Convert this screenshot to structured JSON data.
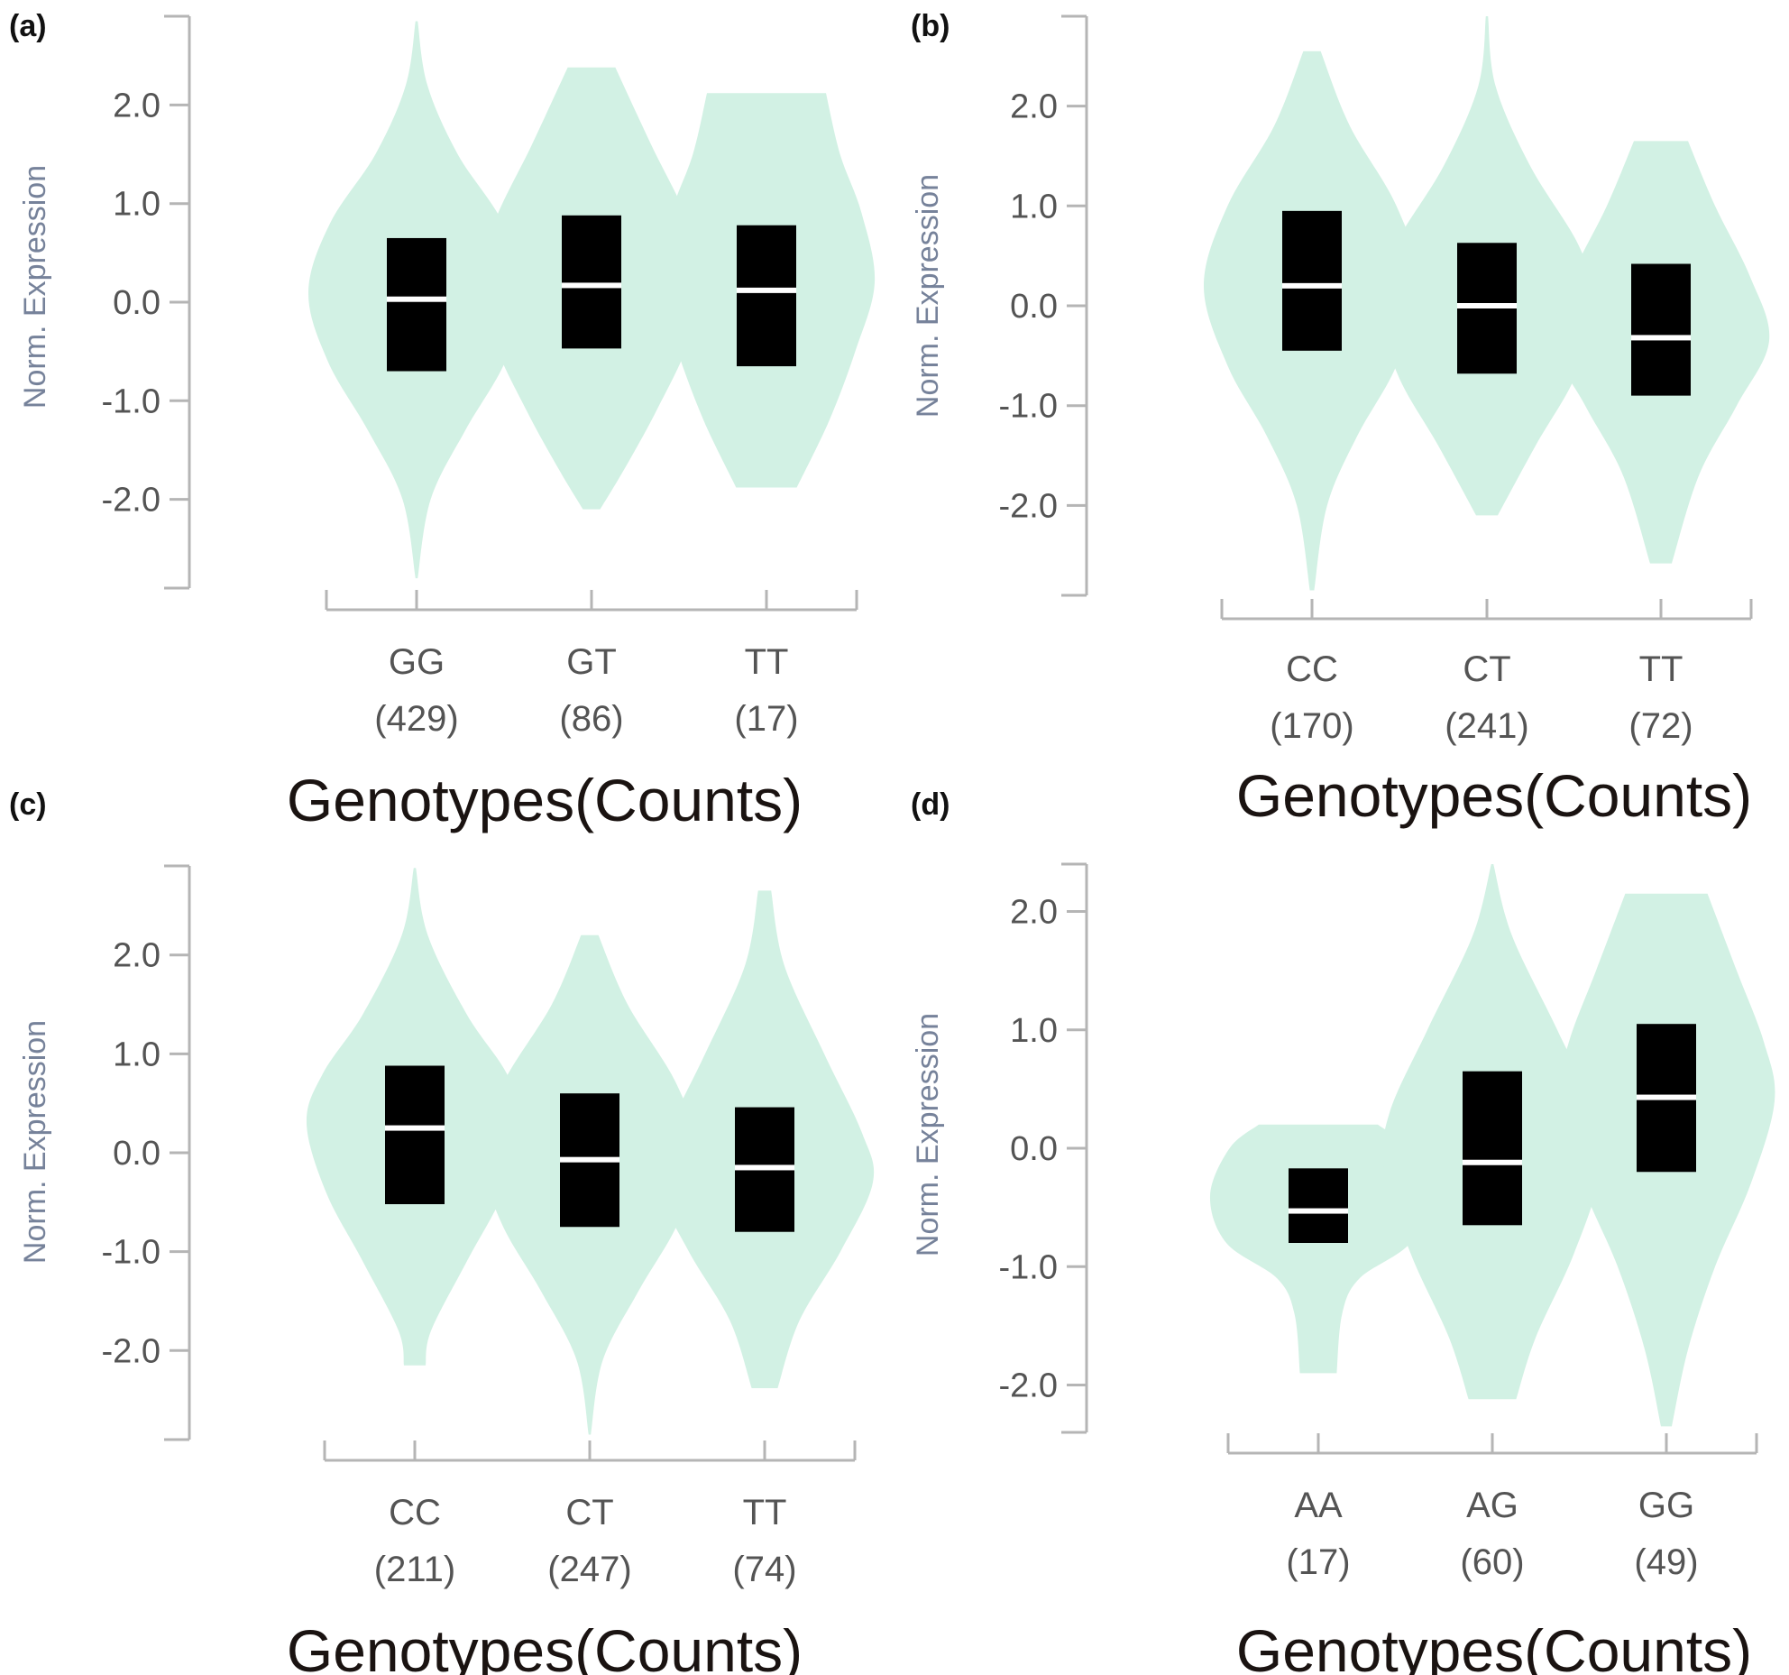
{
  "figure": {
    "colors": {
      "violin": "#d2f1e4",
      "box": "#000000",
      "median": "#ffffff",
      "axis": "#b5b5b5",
      "ylabel": "#76829a",
      "ticks": "#545454",
      "xtitle": "#1a1311"
    }
  },
  "chart_data": [
    {
      "panel": "(a)",
      "type": "violin",
      "ylabel": "Norm. Expression",
      "xlabel": "Genotypes(Counts)",
      "ylim": [
        -2.9,
        2.9
      ],
      "yticks": [
        2.0,
        1.0,
        0.0,
        -1.0,
        -2.0
      ],
      "ytick_labels": [
        "2.0",
        "1.0",
        "0.0",
        "-1.0",
        "-2.0"
      ],
      "groups": [
        {
          "genotype": "GG",
          "count": "(429)",
          "median": 0.03,
          "q1": -0.7,
          "q3": 0.65,
          "min": -2.8,
          "max": 2.85,
          "profile": [
            [
              2.85,
              0.01
            ],
            [
              2.2,
              0.1
            ],
            [
              1.5,
              0.38
            ],
            [
              0.8,
              0.8
            ],
            [
              0.1,
              1.0
            ],
            [
              -0.6,
              0.82
            ],
            [
              -1.3,
              0.45
            ],
            [
              -2.0,
              0.13
            ],
            [
              -2.8,
              0.01
            ]
          ]
        },
        {
          "genotype": "GT",
          "count": "(86)",
          "median": 0.17,
          "q1": -0.47,
          "q3": 0.88,
          "min": -2.1,
          "max": 2.38,
          "profile": [
            [
              2.38,
              0.22
            ],
            [
              1.6,
              0.55
            ],
            [
              0.8,
              0.9
            ],
            [
              0.2,
              1.0
            ],
            [
              -0.4,
              0.9
            ],
            [
              -1.1,
              0.6
            ],
            [
              -1.7,
              0.3
            ],
            [
              -2.1,
              0.08
            ]
          ]
        },
        {
          "genotype": "TT",
          "count": "(17)",
          "median": 0.12,
          "q1": -0.65,
          "q3": 0.78,
          "min": -1.88,
          "max": 2.12,
          "profile": [
            [
              2.12,
              0.55
            ],
            [
              1.5,
              0.68
            ],
            [
              0.9,
              0.88
            ],
            [
              0.2,
              1.0
            ],
            [
              -0.5,
              0.82
            ],
            [
              -1.2,
              0.58
            ],
            [
              -1.88,
              0.28
            ]
          ]
        }
      ]
    },
    {
      "panel": "(b)",
      "type": "violin",
      "ylabel": "Norm. Expression",
      "xlabel": "Genotypes(Counts)",
      "ylim": [
        -2.9,
        2.9
      ],
      "yticks": [
        2.0,
        1.0,
        0.0,
        -1.0,
        -2.0
      ],
      "ytick_labels": [
        "2.0",
        "1.0",
        "0.0",
        "-1.0",
        "-2.0"
      ],
      "groups": [
        {
          "genotype": "CC",
          "count": "(170)",
          "median": 0.2,
          "q1": -0.45,
          "q3": 0.95,
          "min": -2.85,
          "max": 2.55,
          "profile": [
            [
              2.55,
              0.08
            ],
            [
              1.8,
              0.35
            ],
            [
              1.0,
              0.78
            ],
            [
              0.2,
              1.0
            ],
            [
              -0.6,
              0.78
            ],
            [
              -1.3,
              0.42
            ],
            [
              -2.0,
              0.14
            ],
            [
              -2.85,
              0.02
            ]
          ]
        },
        {
          "genotype": "CT",
          "count": "(241)",
          "median": 0.0,
          "q1": -0.68,
          "q3": 0.63,
          "min": -2.1,
          "max": 2.9,
          "profile": [
            [
              2.9,
              0.01
            ],
            [
              2.2,
              0.08
            ],
            [
              1.4,
              0.4
            ],
            [
              0.6,
              0.85
            ],
            [
              0.0,
              1.0
            ],
            [
              -0.7,
              0.82
            ],
            [
              -1.4,
              0.45
            ],
            [
              -2.1,
              0.1
            ]
          ]
        },
        {
          "genotype": "TT",
          "count": "(72)",
          "median": -0.32,
          "q1": -0.9,
          "q3": 0.42,
          "min": -2.58,
          "max": 1.65,
          "profile": [
            [
              1.65,
              0.25
            ],
            [
              1.0,
              0.5
            ],
            [
              0.3,
              0.82
            ],
            [
              -0.35,
              1.0
            ],
            [
              -1.0,
              0.7
            ],
            [
              -1.7,
              0.35
            ],
            [
              -2.58,
              0.1
            ]
          ]
        }
      ]
    },
    {
      "panel": "(c)",
      "type": "violin",
      "ylabel": "Norm. Expression",
      "xlabel": "Genotypes(Counts)",
      "ylim": [
        -2.9,
        2.9
      ],
      "yticks": [
        2.0,
        1.0,
        0.0,
        -1.0,
        -2.0
      ],
      "ytick_labels": [
        "2.0",
        "1.0",
        "0.0",
        "-1.0",
        "-2.0"
      ],
      "groups": [
        {
          "genotype": "CC",
          "count": "(211)",
          "median": 0.25,
          "q1": -0.52,
          "q3": 0.88,
          "min": -2.15,
          "max": 2.88,
          "profile": [
            [
              2.88,
              0.01
            ],
            [
              2.2,
              0.12
            ],
            [
              1.4,
              0.48
            ],
            [
              0.8,
              0.85
            ],
            [
              0.3,
              1.0
            ],
            [
              -0.4,
              0.82
            ],
            [
              -1.1,
              0.48
            ],
            [
              -1.8,
              0.15
            ],
            [
              -2.15,
              0.1
            ]
          ]
        },
        {
          "genotype": "CT",
          "count": "(247)",
          "median": -0.07,
          "q1": -0.75,
          "q3": 0.6,
          "min": -2.85,
          "max": 2.2,
          "profile": [
            [
              2.2,
              0.08
            ],
            [
              1.5,
              0.35
            ],
            [
              0.7,
              0.8
            ],
            [
              0.0,
              1.0
            ],
            [
              -0.7,
              0.82
            ],
            [
              -1.4,
              0.45
            ],
            [
              -2.1,
              0.12
            ],
            [
              -2.85,
              0.01
            ]
          ]
        },
        {
          "genotype": "TT",
          "count": "(74)",
          "median": -0.15,
          "q1": -0.8,
          "q3": 0.46,
          "min": -2.38,
          "max": 2.65,
          "profile": [
            [
              2.65,
              0.06
            ],
            [
              1.9,
              0.18
            ],
            [
              1.0,
              0.55
            ],
            [
              0.2,
              0.9
            ],
            [
              -0.3,
              1.0
            ],
            [
              -1.0,
              0.7
            ],
            [
              -1.7,
              0.32
            ],
            [
              -2.38,
              0.12
            ]
          ]
        }
      ]
    },
    {
      "panel": "(d)",
      "type": "violin",
      "ylabel": "Norm. Expression",
      "xlabel": "Genotypes(Counts)",
      "ylim": [
        -2.4,
        2.4
      ],
      "yticks": [
        2.0,
        1.0,
        0.0,
        -1.0,
        -2.0
      ],
      "ytick_labels": [
        "2.0",
        "1.0",
        "0.0",
        "-1.0",
        "-2.0"
      ],
      "groups": [
        {
          "genotype": "AA",
          "count": "(17)",
          "median": -0.53,
          "q1": -0.8,
          "q3": -0.17,
          "min": -1.9,
          "max": 0.2,
          "profile": [
            [
              0.2,
              0.55
            ],
            [
              0.0,
              0.82
            ],
            [
              -0.4,
              1.0
            ],
            [
              -0.8,
              0.85
            ],
            [
              -1.1,
              0.38
            ],
            [
              -1.4,
              0.22
            ],
            [
              -1.9,
              0.17
            ]
          ]
        },
        {
          "genotype": "AG",
          "count": "(60)",
          "median": -0.12,
          "q1": -0.65,
          "q3": 0.65,
          "min": -2.12,
          "max": 2.4,
          "profile": [
            [
              2.4,
              0.01
            ],
            [
              1.8,
              0.18
            ],
            [
              1.0,
              0.6
            ],
            [
              0.3,
              0.95
            ],
            [
              -0.2,
              1.0
            ],
            [
              -0.9,
              0.75
            ],
            [
              -1.6,
              0.4
            ],
            [
              -2.12,
              0.22
            ]
          ]
        },
        {
          "genotype": "GG",
          "count": "(49)",
          "median": 0.43,
          "q1": -0.2,
          "q3": 1.05,
          "min": -2.35,
          "max": 2.15,
          "profile": [
            [
              2.15,
              0.38
            ],
            [
              1.5,
              0.65
            ],
            [
              0.9,
              0.9
            ],
            [
              0.4,
              1.0
            ],
            [
              -0.3,
              0.78
            ],
            [
              -1.0,
              0.45
            ],
            [
              -1.7,
              0.2
            ],
            [
              -2.35,
              0.05
            ]
          ]
        }
      ]
    }
  ]
}
